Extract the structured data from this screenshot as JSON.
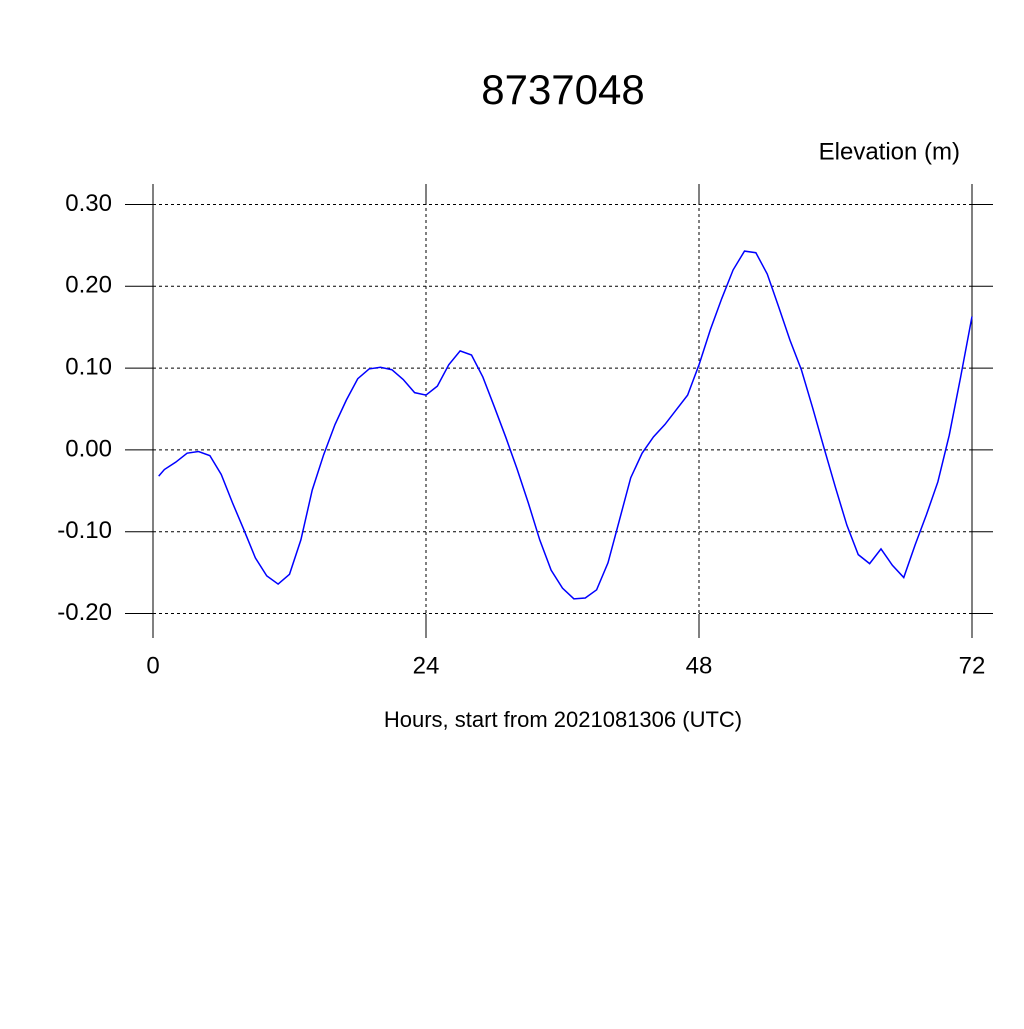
{
  "chart_data": {
    "type": "line",
    "title": "8737048",
    "y_label": "Elevation (m)",
    "x_label": "Hours, start from 2021081306 (UTC)",
    "xlim": [
      0,
      72
    ],
    "ylim": [
      -0.225,
      0.325
    ],
    "xticks": [
      0,
      24,
      48,
      72
    ],
    "yticks": [
      {
        "value": -0.2,
        "label": "-0.20"
      },
      {
        "value": -0.1,
        "label": "-0.10"
      },
      {
        "value": 0,
        "label": "0.00"
      },
      {
        "value": 0.1,
        "label": "0.10"
      },
      {
        "value": 0.2,
        "label": "0.20"
      },
      {
        "value": 0.3,
        "label": "0.30"
      }
    ],
    "grid": true,
    "x": [
      0.5,
      1,
      2,
      3,
      4,
      5,
      6,
      7,
      8,
      9,
      10,
      11,
      12,
      13,
      14,
      15,
      16,
      17,
      18,
      19,
      20,
      21,
      22,
      23,
      24,
      25,
      26,
      27,
      28,
      29,
      30,
      31,
      32,
      33,
      34,
      35,
      36,
      37,
      38,
      39,
      40,
      41,
      42,
      43,
      44,
      45,
      46,
      47,
      48,
      49,
      50,
      51,
      52,
      53,
      54,
      55,
      56,
      57,
      58,
      59,
      60,
      61,
      62,
      63,
      64,
      65,
      66,
      67,
      68,
      69,
      70,
      71,
      72
    ],
    "series": [
      {
        "color": "#0000ff",
        "values": [
          -0.032,
          -0.024,
          -0.015,
          -0.004,
          -0.002,
          -0.007,
          -0.03,
          -0.065,
          -0.098,
          -0.132,
          -0.154,
          -0.164,
          -0.152,
          -0.11,
          -0.049,
          -0.006,
          0.031,
          0.061,
          0.087,
          0.099,
          0.101,
          0.098,
          0.086,
          0.07,
          0.067,
          0.078,
          0.104,
          0.121,
          0.116,
          0.089,
          0.053,
          0.016,
          -0.023,
          -0.065,
          -0.11,
          -0.147,
          -0.169,
          -0.182,
          -0.181,
          -0.171,
          -0.138,
          -0.086,
          -0.034,
          -0.004,
          0.016,
          0.031,
          0.049,
          0.067,
          0.104,
          0.147,
          0.185,
          0.22,
          0.243,
          0.241,
          0.215,
          0.175,
          0.134,
          0.098,
          0.051,
          0.002,
          -0.046,
          -0.092,
          -0.128,
          -0.139,
          -0.121,
          -0.141,
          -0.156,
          -0.116,
          -0.079,
          -0.039,
          0.018,
          0.089,
          0.163
        ]
      }
    ]
  }
}
